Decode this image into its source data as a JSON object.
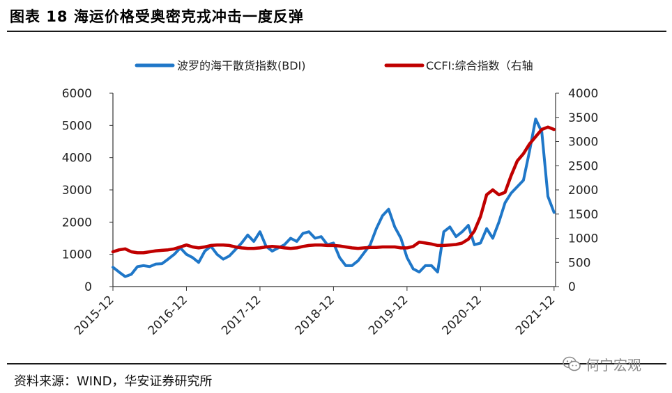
{
  "title": "图表 18 海运价格受奥密克戎冲击一度反弹",
  "source": "资料来源：WIND，华安证券研究所",
  "watermark": "何宁宏观",
  "colors": {
    "bdi": "#1F77C8",
    "ccfi": "#C00000",
    "axis": "#333333"
  },
  "chart_data": {
    "type": "line",
    "title": "",
    "xlabel": "",
    "ylabel": "",
    "x_ticks": [
      "2015-12",
      "2016-12",
      "2017-12",
      "2018-12",
      "2019-12",
      "2020-12",
      "2021-12"
    ],
    "y_left": {
      "ylim": [
        0,
        6000
      ],
      "ticks": [
        "0",
        "1000",
        "2000",
        "3000",
        "4000",
        "5000",
        "6000"
      ]
    },
    "y_right": {
      "ylim": [
        0,
        4000
      ],
      "ticks": [
        "0",
        "500",
        "1000",
        "1500",
        "2000",
        "2500",
        "3000",
        "3500",
        "4000"
      ]
    },
    "legend": {
      "placement": "top"
    },
    "grid": false,
    "series": [
      {
        "name": "波罗的海干散货指数(BDI)",
        "axis": "left",
        "x": [
          "2015-12",
          "2016-01",
          "2016-02",
          "2016-03",
          "2016-04",
          "2016-05",
          "2016-06",
          "2016-07",
          "2016-08",
          "2016-09",
          "2016-10",
          "2016-11",
          "2016-12",
          "2017-01",
          "2017-02",
          "2017-03",
          "2017-04",
          "2017-05",
          "2017-06",
          "2017-07",
          "2017-08",
          "2017-09",
          "2017-10",
          "2017-11",
          "2017-12",
          "2018-01",
          "2018-02",
          "2018-03",
          "2018-04",
          "2018-05",
          "2018-06",
          "2018-07",
          "2018-08",
          "2018-09",
          "2018-10",
          "2018-11",
          "2018-12",
          "2019-01",
          "2019-02",
          "2019-03",
          "2019-04",
          "2019-05",
          "2019-06",
          "2019-07",
          "2019-08",
          "2019-09",
          "2019-10",
          "2019-11",
          "2019-12",
          "2020-01",
          "2020-02",
          "2020-03",
          "2020-04",
          "2020-05",
          "2020-06",
          "2020-07",
          "2020-08",
          "2020-09",
          "2020-10",
          "2020-11",
          "2020-12",
          "2021-01",
          "2021-02",
          "2021-03",
          "2021-04",
          "2021-05",
          "2021-06",
          "2021-07",
          "2021-08",
          "2021-09",
          "2021-10",
          "2021-11",
          "2021-12"
        ],
        "values": [
          600,
          450,
          310,
          380,
          620,
          650,
          620,
          700,
          710,
          850,
          1000,
          1200,
          1000,
          900,
          750,
          1100,
          1250,
          1000,
          850,
          950,
          1150,
          1350,
          1600,
          1400,
          1700,
          1250,
          1100,
          1200,
          1300,
          1500,
          1400,
          1650,
          1700,
          1500,
          1550,
          1300,
          1350,
          900,
          650,
          650,
          800,
          1050,
          1300,
          1800,
          2200,
          2400,
          1850,
          1500,
          900,
          550,
          450,
          650,
          650,
          450,
          1700,
          1850,
          1550,
          1700,
          1900,
          1300,
          1350,
          1800,
          1500,
          2000,
          2600,
          2900,
          3100,
          3300,
          4200,
          5200,
          4800,
          2800,
          2300
        ]
      },
      {
        "name": "CCFI:综合指数（右轴",
        "axis": "right",
        "x": [
          "2015-12",
          "2016-01",
          "2016-02",
          "2016-03",
          "2016-04",
          "2016-05",
          "2016-06",
          "2016-07",
          "2016-08",
          "2016-09",
          "2016-10",
          "2016-11",
          "2016-12",
          "2017-01",
          "2017-02",
          "2017-03",
          "2017-04",
          "2017-05",
          "2017-06",
          "2017-07",
          "2017-08",
          "2017-09",
          "2017-10",
          "2017-11",
          "2017-12",
          "2018-01",
          "2018-02",
          "2018-03",
          "2018-04",
          "2018-05",
          "2018-06",
          "2018-07",
          "2018-08",
          "2018-09",
          "2018-10",
          "2018-11",
          "2018-12",
          "2019-01",
          "2019-02",
          "2019-03",
          "2019-04",
          "2019-05",
          "2019-06",
          "2019-07",
          "2019-08",
          "2019-09",
          "2019-10",
          "2019-11",
          "2019-12",
          "2020-01",
          "2020-02",
          "2020-03",
          "2020-04",
          "2020-05",
          "2020-06",
          "2020-07",
          "2020-08",
          "2020-09",
          "2020-10",
          "2020-11",
          "2020-12",
          "2021-01",
          "2021-02",
          "2021-03",
          "2021-04",
          "2021-05",
          "2021-06",
          "2021-07",
          "2021-08",
          "2021-09",
          "2021-10",
          "2021-11",
          "2021-12"
        ],
        "values": [
          720,
          760,
          780,
          720,
          700,
          700,
          720,
          740,
          750,
          760,
          780,
          820,
          860,
          820,
          800,
          820,
          850,
          860,
          860,
          850,
          820,
          800,
          790,
          790,
          800,
          820,
          830,
          820,
          800,
          790,
          800,
          830,
          850,
          860,
          860,
          850,
          850,
          840,
          820,
          800,
          790,
          800,
          810,
          810,
          820,
          820,
          820,
          800,
          800,
          830,
          920,
          900,
          880,
          850,
          850,
          860,
          870,
          900,
          980,
          1150,
          1450,
          1900,
          2000,
          1900,
          1950,
          2300,
          2600,
          2750,
          2950,
          3100,
          3250,
          3300,
          3250
        ]
      }
    ]
  }
}
